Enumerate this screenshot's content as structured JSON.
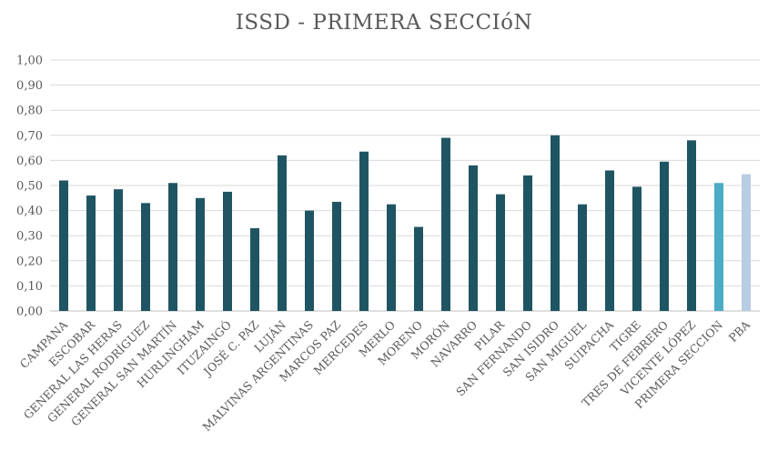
{
  "chart_data": {
    "type": "bar",
    "title": "ISSD - PRIMERA SECCIóN",
    "xlabel": "",
    "ylabel": "",
    "ylim": [
      0,
      1.0
    ],
    "y_ticks": [
      "0,00",
      "0,10",
      "0,20",
      "0,30",
      "0,40",
      "0,50",
      "0,60",
      "0,70",
      "0,80",
      "0,90",
      "1,00"
    ],
    "grid": true,
    "legend": "none",
    "categories": [
      "CAMPANA",
      "ESCOBAR",
      "GENERAL LAS HERAS",
      "GENERAL RODRÍGUEZ",
      "GENERAL SAN MARTÍN",
      "HURLINGHAM",
      "ITUZAINGÓ",
      "JOSÉ C. PAZ",
      "LUJÁN",
      "MALVINAS ARGENTINAS",
      "MARCOS PAZ",
      "MERCEDES",
      "MERLO",
      "MORENO",
      "MORÓN",
      "NAVARRO",
      "PILAR",
      "SAN FERNANDO",
      "SAN ISIDRO",
      "SAN MIGUEL",
      "SUIPACHA",
      "TIGRE",
      "TRES DE FEBRERO",
      "VICENTE LÓPEZ",
      "PRIMERA SECCION",
      "PBA"
    ],
    "values": [
      0.52,
      0.46,
      0.485,
      0.43,
      0.51,
      0.45,
      0.475,
      0.33,
      0.62,
      0.4,
      0.435,
      0.635,
      0.425,
      0.335,
      0.69,
      0.58,
      0.465,
      0.54,
      0.7,
      0.425,
      0.56,
      0.495,
      0.595,
      0.68,
      0.51,
      0.545
    ],
    "colors": {
      "municipio": "#1f5563",
      "primera_seccion": "#4bacc6",
      "pba": "#b8cce4",
      "grid": "#d9d9d9",
      "text": "#595959"
    }
  }
}
